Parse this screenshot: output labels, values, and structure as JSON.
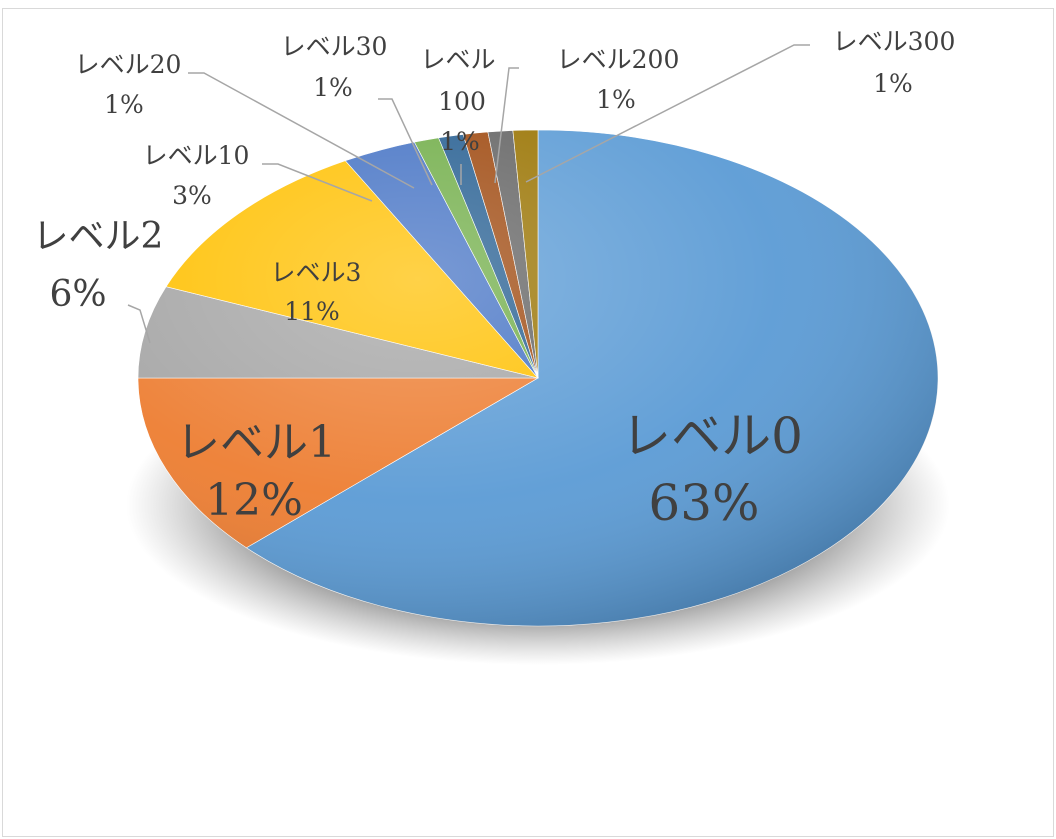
{
  "chart_data": {
    "type": "pie",
    "title": "",
    "style": "3d-tilted-shaded",
    "legend": "none",
    "slices": [
      {
        "label": "レベル0",
        "value": 63,
        "percent_text": "63%",
        "color": "#5b9bd5"
      },
      {
        "label": "レベル1",
        "value": 12,
        "percent_text": "12%",
        "color": "#ed7d31"
      },
      {
        "label": "レベル2",
        "value": 6,
        "percent_text": "6%",
        "color": "#a5a5a5"
      },
      {
        "label": "レベル3",
        "value": 11,
        "percent_text": "11%",
        "color": "#ffc000"
      },
      {
        "label": "レベル10",
        "value": 3,
        "percent_text": "3%",
        "color": "#4472c4"
      },
      {
        "label": "レベル20",
        "value": 1,
        "percent_text": "1%",
        "color": "#70ad47"
      },
      {
        "label": "レベル30",
        "value": 1,
        "percent_text": "1%",
        "color": "#255e91"
      },
      {
        "label": "レベル100",
        "value": 1,
        "percent_text": "1%",
        "color": "#9e480e"
      },
      {
        "label": "レベル200",
        "value": 1,
        "percent_text": "1%",
        "color": "#636363"
      },
      {
        "label": "レベル300",
        "value": 1,
        "percent_text": "1%",
        "color": "#997300"
      }
    ]
  }
}
